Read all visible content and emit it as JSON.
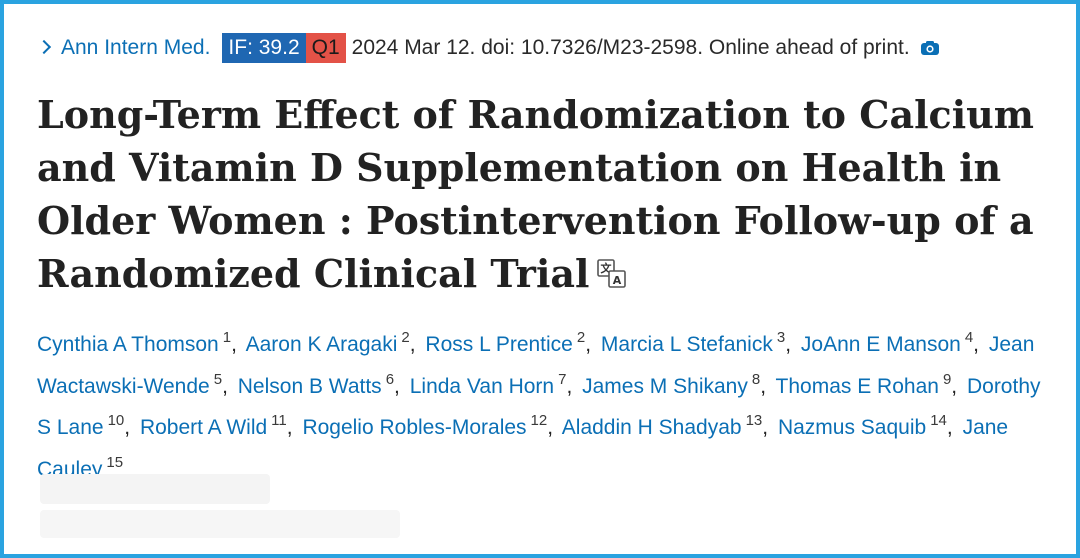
{
  "citation": {
    "journal": "Ann Intern Med.",
    "impact_factor": "IF: 39.2",
    "quartile": "Q1",
    "pubinfo": "2024 Mar 12. doi: 10.7326/M23-2598. Online ahead of print."
  },
  "title": "Long-Term Effect of Randomization to Calcium and Vitamin D Supplementation on Health in Older Women : Postintervention Follow-up of a Randomized Clinical Trial",
  "authors": [
    {
      "name": "Cynthia A Thomson",
      "aff": "1"
    },
    {
      "name": "Aaron K Aragaki",
      "aff": "2"
    },
    {
      "name": "Ross L Prentice",
      "aff": "2"
    },
    {
      "name": "Marcia L Stefanick",
      "aff": "3"
    },
    {
      "name": "JoAnn E Manson",
      "aff": "4"
    },
    {
      "name": "Jean Wactawski-Wende",
      "aff": "5"
    },
    {
      "name": "Nelson B Watts",
      "aff": "6"
    },
    {
      "name": "Linda Van Horn",
      "aff": "7"
    },
    {
      "name": "James M Shikany",
      "aff": "8"
    },
    {
      "name": "Thomas E Rohan",
      "aff": "9"
    },
    {
      "name": "Dorothy S Lane",
      "aff": "10"
    },
    {
      "name": "Robert A Wild",
      "aff": "11"
    },
    {
      "name": "Rogelio Robles-Morales",
      "aff": "12"
    },
    {
      "name": "Aladdin H Shadyab",
      "aff": "13"
    },
    {
      "name": "Nazmus Saquib",
      "aff": "14"
    },
    {
      "name": "Jane Cauley",
      "aff": "15"
    }
  ],
  "colors": {
    "frame": "#2aa3e0",
    "link": "#0b6fb5",
    "if_badge": "#1f67b2",
    "q_badge": "#e35247"
  }
}
